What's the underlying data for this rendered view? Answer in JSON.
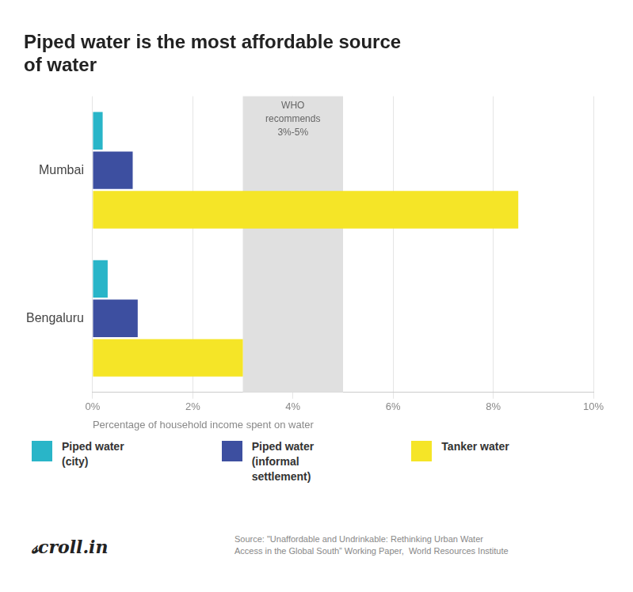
{
  "chart_data": {
    "type": "bar",
    "orientation": "horizontal",
    "title": "Piped water is the most affordable source\nof water",
    "categories": [
      "Mumbai",
      "Bengaluru"
    ],
    "series": [
      {
        "name": "Piped water\n(city)",
        "color": "#29b5c8",
        "values": [
          0.2,
          0.3
        ]
      },
      {
        "name": "Piped water\n(informal\nsettlement)",
        "color": "#3d4fa0",
        "values": [
          0.8,
          0.9
        ]
      },
      {
        "name": "Tanker water",
        "color": "#f5e527",
        "values": [
          8.5,
          3.0
        ]
      }
    ],
    "xlabel": "Percentage of household income spent on water",
    "xlim": [
      0,
      10
    ],
    "xticks": [
      {
        "value": 0,
        "label": "0%"
      },
      {
        "value": 2,
        "label": "2%"
      },
      {
        "value": 4,
        "label": "4%"
      },
      {
        "value": 6,
        "label": "6%"
      },
      {
        "value": 8,
        "label": "8%"
      },
      {
        "value": 10,
        "label": "10%"
      }
    ],
    "grid": true,
    "legend": "bottom",
    "shaded_ranges": [
      {
        "from": 3.0,
        "to": 5.0,
        "color": "#e0e0e0",
        "label": "WHO\nrecommends\n3%-5%"
      }
    ],
    "source": "Source: \"Unaffordable and Undrinkable: Rethinking Urban Water\nAccess in the Global South” Working Paper,  World Resources Institute",
    "logo": "𝓈croll.in"
  }
}
